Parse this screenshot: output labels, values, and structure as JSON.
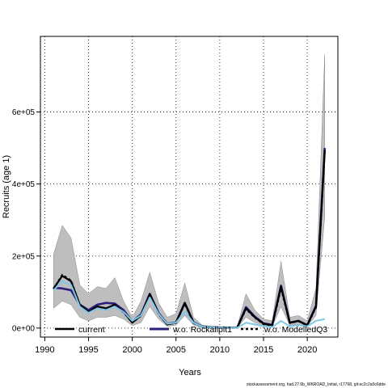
{
  "chart_data": {
    "type": "line",
    "title": "",
    "xlabel": "Years",
    "ylabel": "Recruits (age 1)",
    "xlim": [
      1989.5,
      2023.5
    ],
    "ylim": [
      -25000,
      810000
    ],
    "x_ticks": [
      1990,
      1995,
      2000,
      2005,
      2010,
      2015,
      2020
    ],
    "x_tick_labels": [
      "1990",
      "1995",
      "2000",
      "2005",
      "2010",
      "2015",
      "2020"
    ],
    "y_ticks": [
      0,
      200000,
      400000,
      600000
    ],
    "y_tick_labels": [
      "0e+00",
      "2e+05",
      "4e+05",
      "6e+05"
    ],
    "grid": true,
    "legend_position": "bottom",
    "x": [
      1991,
      1992,
      1993,
      1994,
      1995,
      1996,
      1997,
      1998,
      1999,
      2000,
      2001,
      2002,
      2003,
      2004,
      2005,
      2006,
      2007,
      2008,
      2009,
      2010,
      2011,
      2012,
      2013,
      2014,
      2015,
      2016,
      2017,
      2018,
      2019,
      2020,
      2021,
      2022
    ],
    "band": {
      "color": "#bebebe",
      "upper": [
        205000,
        285000,
        250000,
        120000,
        95000,
        115000,
        110000,
        140000,
        75000,
        30000,
        75000,
        155000,
        70000,
        30000,
        40000,
        125000,
        30000,
        8000,
        5000,
        4000,
        3000,
        4000,
        95000,
        50000,
        25000,
        20000,
        185000,
        30000,
        35000,
        20000,
        110000,
        760000
      ],
      "lower": [
        55000,
        75000,
        65000,
        30000,
        20000,
        30000,
        30000,
        35000,
        25000,
        7000,
        15000,
        60000,
        25000,
        5000,
        8000,
        35000,
        8000,
        2000,
        1500,
        1000,
        1000,
        1500,
        30000,
        15000,
        8000,
        5000,
        60000,
        8000,
        10000,
        5000,
        35000,
        310000
      ]
    },
    "series": [
      {
        "name": "current",
        "color": "#000000",
        "dash": "",
        "width": 2.2,
        "values": [
          110000,
          145000,
          130000,
          65000,
          45000,
          60000,
          55000,
          65000,
          45000,
          15000,
          35000,
          95000,
          40000,
          10000,
          15000,
          70000,
          15000,
          4000,
          2000,
          1500,
          1200,
          1500,
          55000,
          30000,
          12000,
          8000,
          115000,
          15000,
          20000,
          8000,
          60000,
          495000
        ]
      },
      {
        "name": "w.o. Rockallplt1",
        "color": "#2b1f7a",
        "dash": "",
        "width": 2.6,
        "values": [
          112000,
          110000,
          105000,
          65000,
          50000,
          65000,
          70000,
          68000,
          50000,
          18000,
          38000,
          95000,
          42000,
          12000,
          16000,
          70000,
          16000,
          4000,
          2000,
          1500,
          1200,
          1500,
          58000,
          32000,
          13000,
          9000,
          118000,
          15000,
          20000,
          8000,
          62000,
          500000
        ]
      },
      {
        "name": "w.o. ModelledQ3",
        "color": "#000000",
        "dash": "3,3",
        "width": 2.2,
        "values": [
          108000,
          148000,
          132000,
          64000,
          44000,
          58000,
          53000,
          63000,
          44000,
          15000,
          34000,
          92000,
          39000,
          10000,
          14000,
          68000,
          14000,
          4000,
          2000,
          1500,
          1200,
          1500,
          53000,
          29000,
          11000,
          7000,
          110000,
          14000,
          19000,
          7000,
          58000,
          490000
        ]
      },
      {
        "name": "",
        "color": "#7ec8e8",
        "dash": "",
        "width": 2.0,
        "values": [
          105000,
          130000,
          120000,
          60000,
          42000,
          55000,
          50000,
          60000,
          45000,
          20000,
          35000,
          85000,
          40000,
          12000,
          15000,
          45000,
          15000,
          4000,
          2000,
          1500,
          1000,
          1000,
          15000,
          10000,
          5000,
          3000,
          20000,
          5000,
          8000,
          5000,
          20000,
          25000
        ]
      }
    ],
    "legend": [
      "current",
      "w.o. Rockallplt1",
      "w.o. ModelledQ3"
    ]
  },
  "footer": {
    "text": "stockassessment.org, had.27.6b_WKROAD_Initial, r17768, git:ec2c2a0c6dde"
  }
}
